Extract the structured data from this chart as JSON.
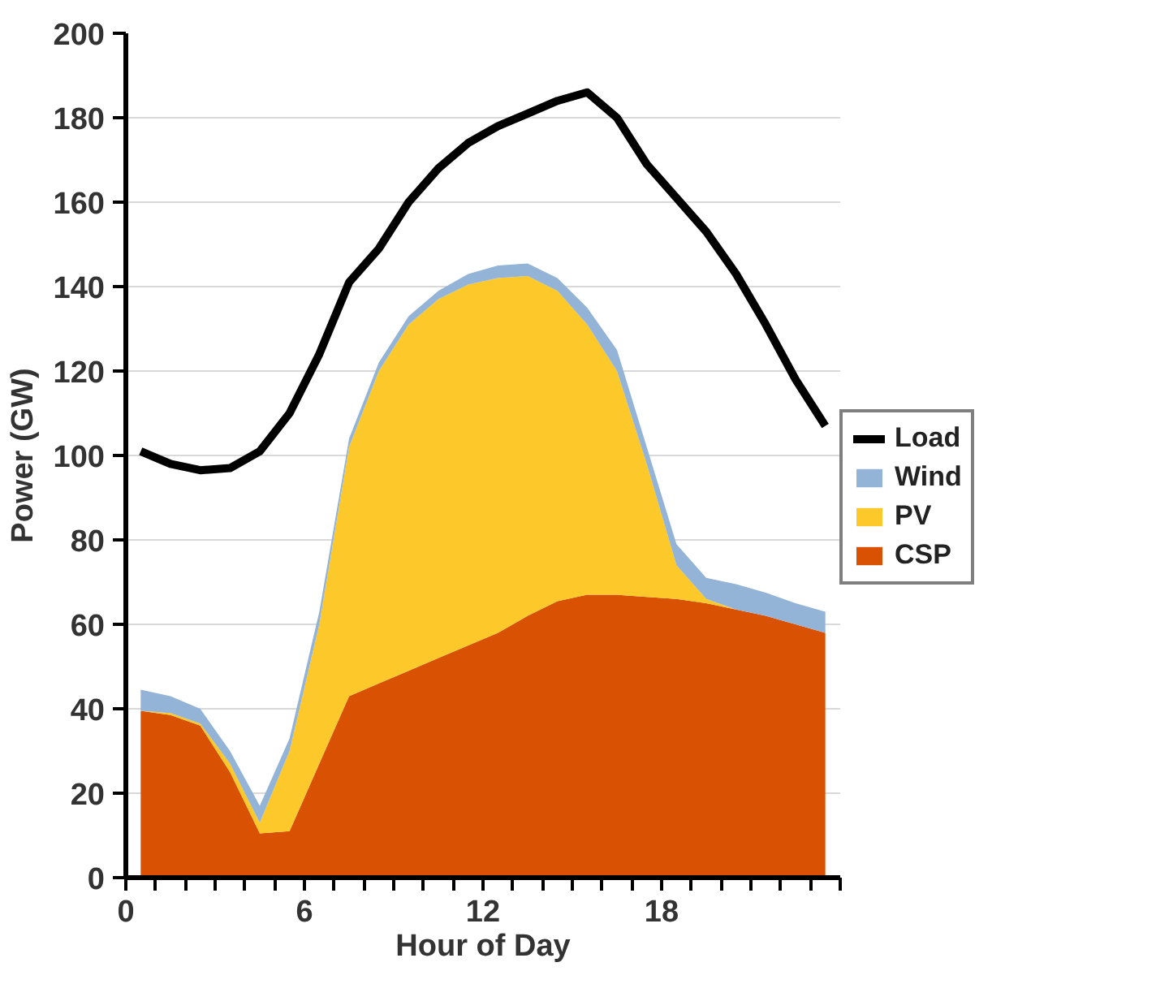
{
  "chart_data": {
    "type": "area",
    "stacked": true,
    "xlabel": "Hour of Day",
    "ylabel": "Power (GW)",
    "x": [
      0.5,
      1.5,
      2.5,
      3.5,
      4.5,
      5.5,
      6.5,
      7.5,
      8.5,
      9.5,
      10.5,
      11.5,
      12.5,
      13.5,
      14.5,
      15.5,
      16.5,
      17.5,
      18.5,
      19.5,
      20.5,
      21.5,
      22.5,
      23.5
    ],
    "series": [
      {
        "name": "CSP",
        "color": "#d95204",
        "values": [
          39.5,
          38.5,
          36,
          25,
          10.5,
          11,
          27,
          43,
          46,
          49,
          52,
          55,
          58,
          62,
          65.5,
          67,
          67,
          66.5,
          66,
          65,
          63.5,
          62,
          60,
          58
        ]
      },
      {
        "name": "PV",
        "color": "#fdc82a",
        "values": [
          0,
          0.5,
          0.5,
          2,
          2.5,
          19,
          33,
          59,
          74,
          82,
          85,
          85.5,
          84,
          80.5,
          73.5,
          64,
          53,
          31.5,
          8,
          1,
          0,
          0,
          0,
          0
        ]
      },
      {
        "name": "Wind",
        "color": "#93b3d7",
        "values": [
          5,
          4,
          3.5,
          3,
          4,
          3,
          3,
          2,
          2,
          2,
          2,
          2.5,
          3,
          3,
          3,
          4,
          5,
          4,
          5,
          5,
          6,
          5.5,
          5,
          5
        ]
      },
      {
        "name": "Load",
        "color": "#000000",
        "type": "line",
        "values": [
          101,
          98,
          96.5,
          97,
          101,
          110,
          124,
          141,
          149,
          160,
          168,
          174,
          178,
          181,
          184,
          186,
          180,
          169,
          161,
          153,
          143,
          131,
          118,
          107
        ]
      }
    ],
    "xlim": [
      0,
      24
    ],
    "xticks": [
      0,
      {
        "value": 1,
        "label": null
      },
      {
        "value": 2,
        "label": null
      },
      {
        "value": 3,
        "label": null
      },
      {
        "value": 4,
        "label": null
      },
      {
        "value": 5,
        "label": null
      },
      6,
      {
        "value": 7,
        "label": null
      },
      {
        "value": 8,
        "label": null
      },
      {
        "value": 9,
        "label": null
      },
      {
        "value": 10,
        "label": null
      },
      {
        "value": 11,
        "label": null
      },
      12,
      {
        "value": 13,
        "label": null
      },
      {
        "value": 14,
        "label": null
      },
      {
        "value": 15,
        "label": null
      },
      {
        "value": 16,
        "label": null
      },
      {
        "value": 17,
        "label": null
      },
      18,
      {
        "value": 19,
        "label": null
      },
      {
        "value": 20,
        "label": null
      },
      {
        "value": 21,
        "label": null
      },
      {
        "value": 22,
        "label": null
      },
      {
        "value": 23,
        "label": null
      },
      {
        "value": 24,
        "label": null
      }
    ],
    "ylim": [
      0,
      200
    ],
    "yticks": [
      0,
      20,
      40,
      60,
      80,
      100,
      120,
      140,
      160,
      180,
      200
    ],
    "grid": "y",
    "legend": "right"
  }
}
